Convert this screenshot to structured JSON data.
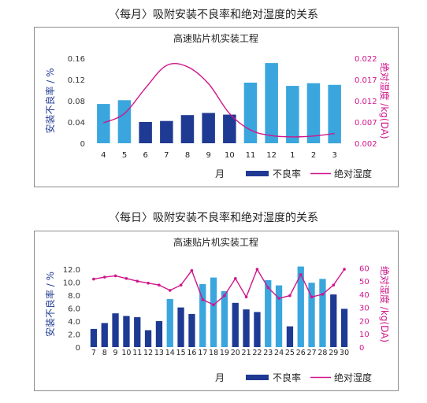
{
  "page": {
    "monthly_heading": "〈每月〉吸附安装不良率和绝对湿度的关系",
    "daily_heading": "〈每日〉吸附安装不良率和绝对湿度的关系"
  },
  "colors": {
    "bar_light": "#3aa6dd",
    "bar_dark": "#1f3a93",
    "humidity_line": "#d0168c",
    "left_axis_text": "#1f3a93",
    "right_axis_text": "#d0168c"
  },
  "chart_data": [
    {
      "type": "bar",
      "title": "高速贴片机实装工程",
      "xlabel": "月",
      "ylabel": "安装不良率 / %",
      "y2label": "绝对湿度 /kg(DA)",
      "categories": [
        "4",
        "5",
        "6",
        "7",
        "8",
        "9",
        "10",
        "11",
        "12",
        "1",
        "2",
        "3"
      ],
      "y_ticks": [
        "0",
        "0.04",
        "0.08",
        "0.12",
        "0.16"
      ],
      "ylim": [
        0,
        0.16
      ],
      "y2_ticks": [
        "0.002",
        "0.007",
        "0.012",
        "0.017",
        "0.022"
      ],
      "y2lim": [
        0.002,
        0.022
      ],
      "bar_shades": [
        "light",
        "light",
        "dark",
        "dark",
        "dark",
        "dark",
        "dark",
        "light",
        "light",
        "light",
        "light",
        "light"
      ],
      "series": [
        {
          "name": "不良率",
          "axis": "left",
          "values": [
            0.074,
            0.081,
            0.04,
            0.042,
            0.053,
            0.057,
            0.054,
            0.114,
            0.151,
            0.108,
            0.113,
            0.11
          ]
        },
        {
          "name": "绝对湿度",
          "axis": "right",
          "values": [
            0.0068,
            0.009,
            0.015,
            0.0203,
            0.02,
            0.016,
            0.009,
            0.0051,
            0.0038,
            0.0035,
            0.0037,
            0.0043
          ]
        }
      ],
      "legend": {
        "bar_label": "不良率",
        "line_label": "绝对湿度",
        "position": "bottom"
      },
      "grid": false
    },
    {
      "type": "bar",
      "title": "高速贴片机实装工程",
      "xlabel": "月",
      "ylabel": "安装不良率 / %",
      "y2label": "绝对湿度 /kg(DA)",
      "categories": [
        "7",
        "8",
        "9",
        "10",
        "11",
        "12",
        "13",
        "14",
        "15",
        "16",
        "17",
        "18",
        "19",
        "20",
        "21",
        "22",
        "23",
        "24",
        "25",
        "26",
        "27",
        "28",
        "29",
        "30"
      ],
      "y_ticks": [
        "0",
        "2.0",
        "4.0",
        "6.0",
        "8.0",
        "10.0",
        "12.0"
      ],
      "ylim": [
        0,
        13.2
      ],
      "y2_ticks": [
        "0",
        "10",
        "20",
        "30",
        "40",
        "50",
        "60"
      ],
      "y2lim": [
        0,
        65
      ],
      "bar_shades": [
        "dark",
        "dark",
        "dark",
        "dark",
        "dark",
        "dark",
        "dark",
        "light",
        "dark",
        "dark",
        "light",
        "light",
        "light",
        "dark",
        "dark",
        "dark",
        "light",
        "light",
        "dark",
        "light",
        "light",
        "light",
        "dark",
        "dark"
      ],
      "series": [
        {
          "name": "不良率",
          "axis": "left",
          "values": [
            2.8,
            3.7,
            5.2,
            4.8,
            4.6,
            2.6,
            4.0,
            7.4,
            6.1,
            5.1,
            9.7,
            10.7,
            8.6,
            6.8,
            5.8,
            5.4,
            10.3,
            9.5,
            3.2,
            12.4,
            9.9,
            10.5,
            8.1,
            5.9
          ]
        },
        {
          "name": "绝对湿度",
          "axis": "right",
          "values": [
            51.5,
            53,
            54,
            52,
            50,
            48.5,
            47,
            43,
            47,
            58,
            36,
            32,
            39,
            52,
            38,
            59,
            45,
            37,
            39,
            55,
            38,
            40,
            47,
            59
          ]
        }
      ],
      "legend": {
        "bar_label": "不良率",
        "line_label": "绝对湿度",
        "position": "bottom"
      },
      "grid": false
    }
  ]
}
